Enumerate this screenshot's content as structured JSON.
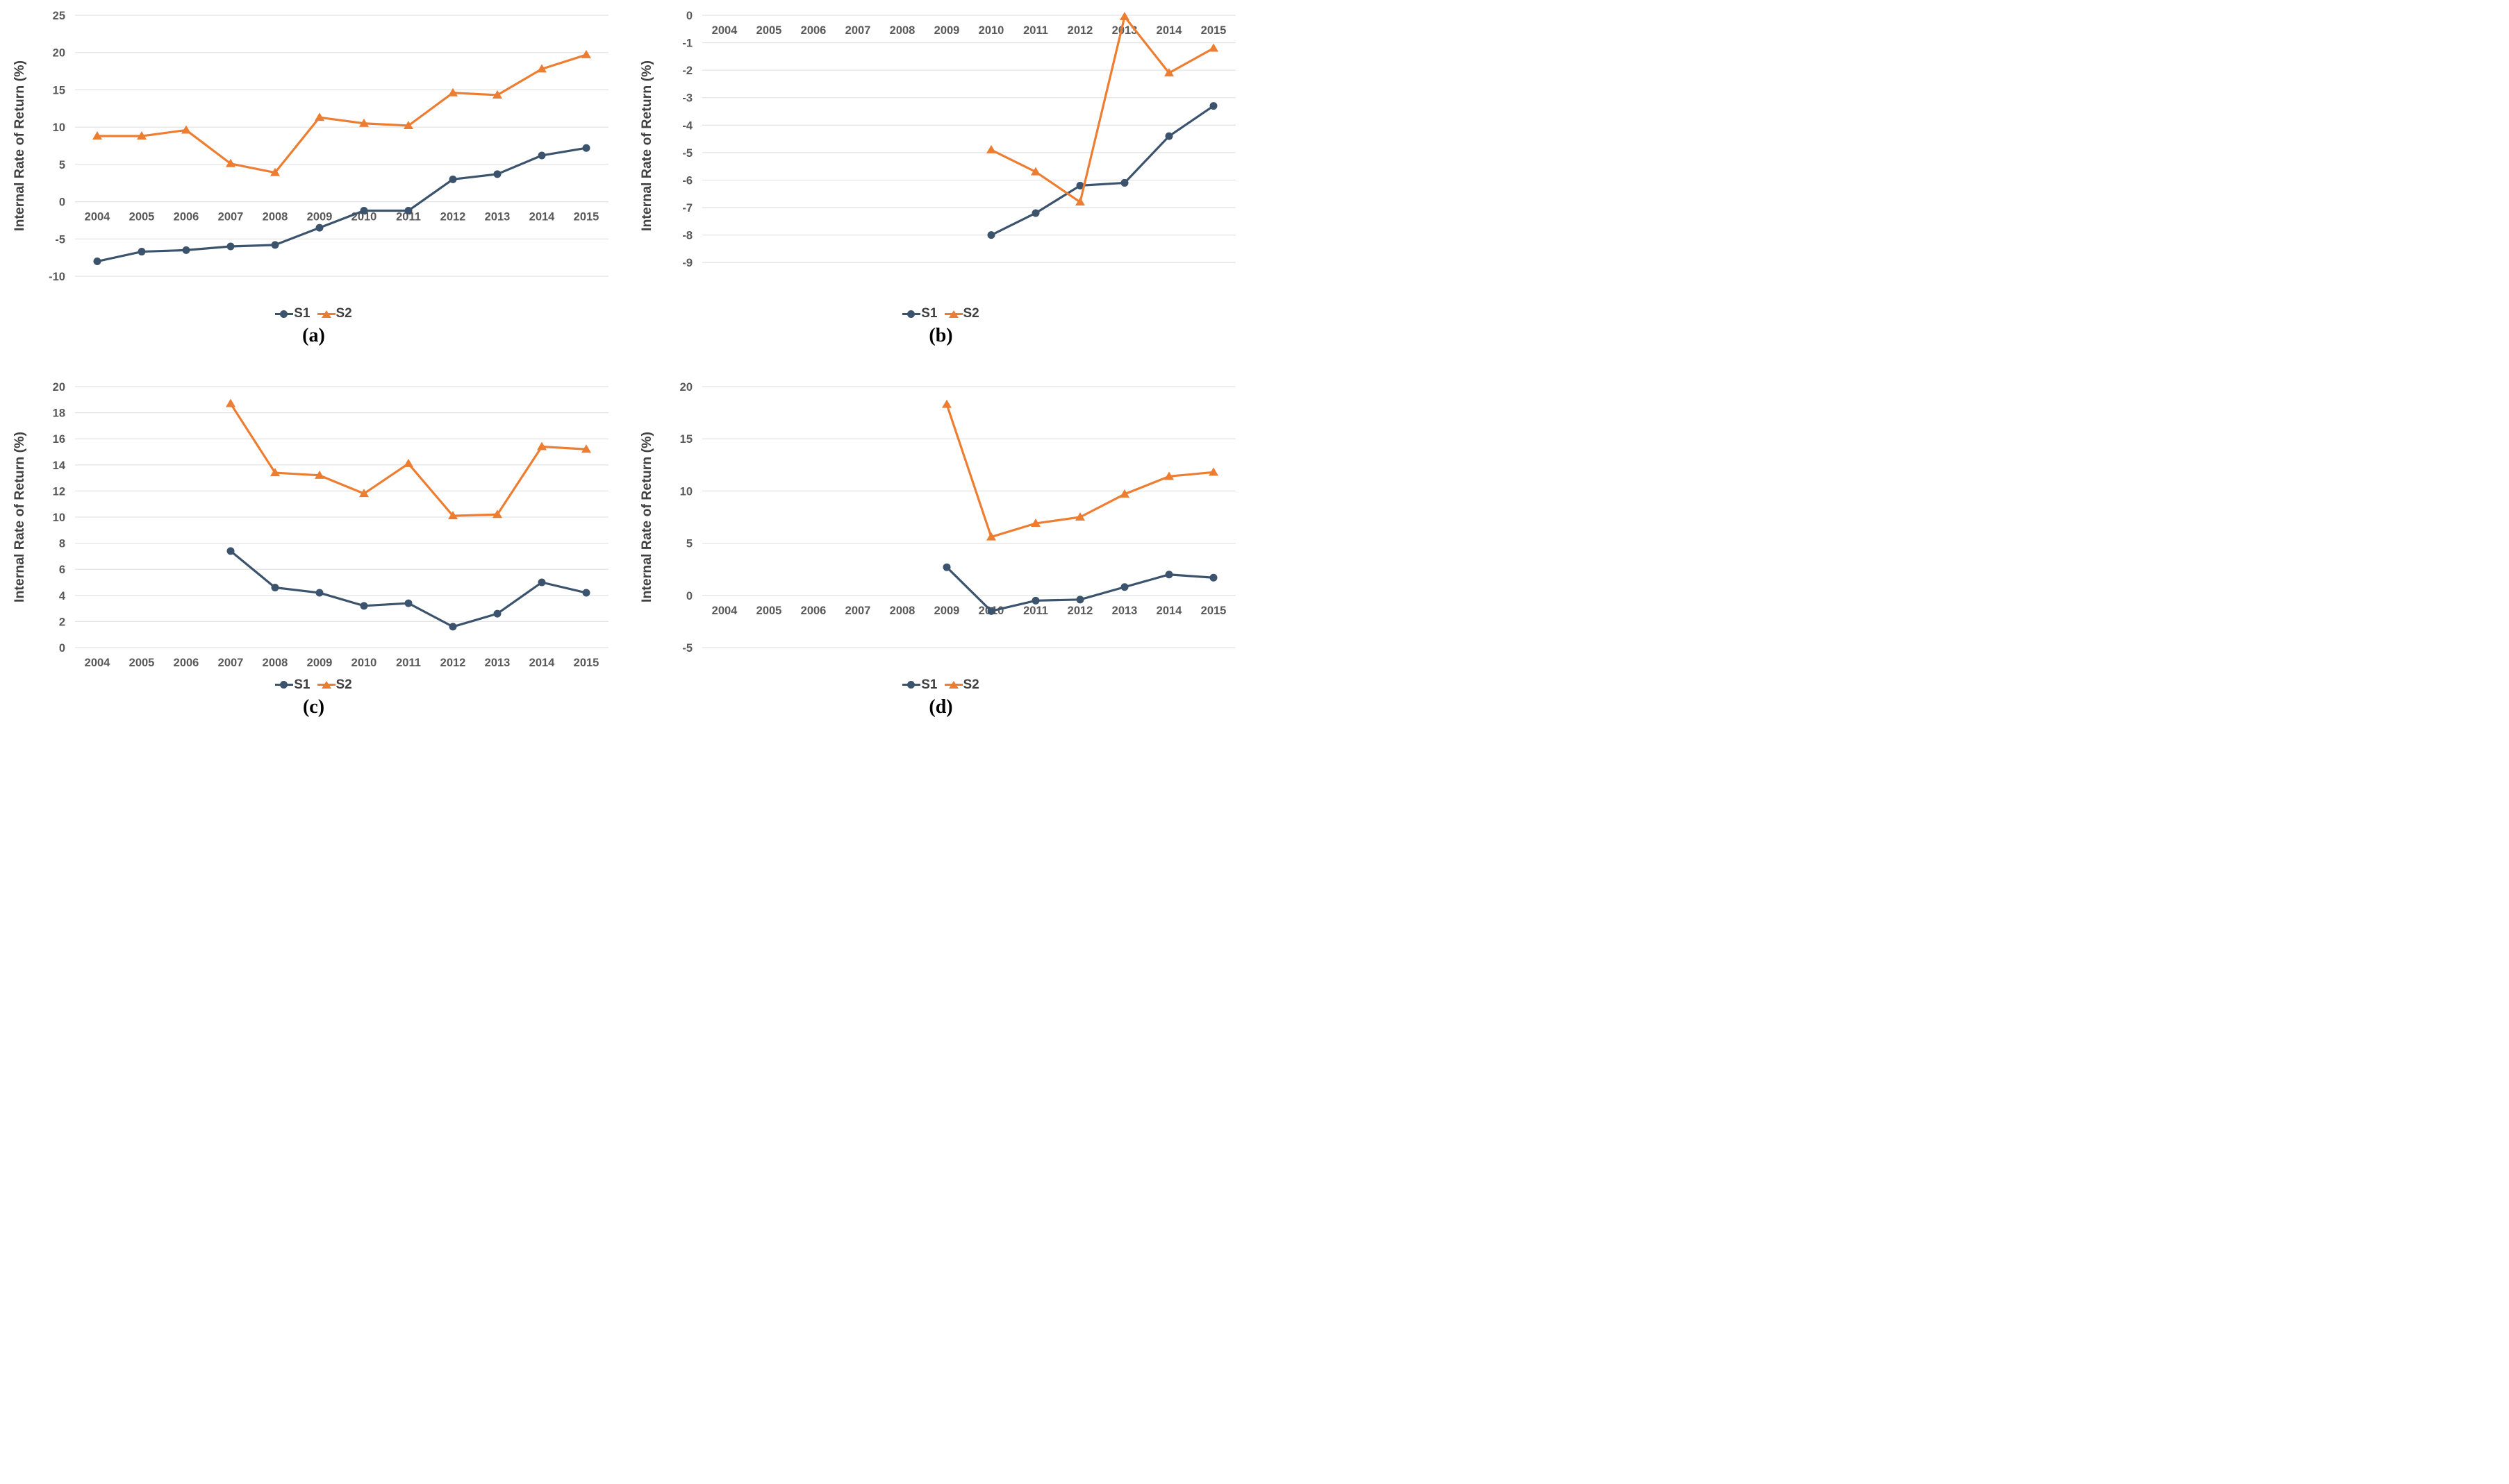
{
  "page": {
    "background": "#ffffff"
  },
  "colors": {
    "s1_line": "#3B536C",
    "s2_line": "#ED7D31",
    "tick_text": "#595959",
    "axis_title_text": "#404040",
    "gridline": "#E4E4E4",
    "legend_text": "#3F3F3F",
    "caption_text": "#000000"
  },
  "legend": {
    "s1_label": "S1",
    "s2_label": "S2"
  },
  "chart_data": [
    {
      "id": "a",
      "type": "line",
      "caption": "(a)",
      "ylabel": "Internal Rate of Return (%)",
      "xlabel": "",
      "ylim": [
        -10,
        25
      ],
      "ytick_step": 5,
      "grid": true,
      "legend_position": "bottom",
      "x_labels_at_zero_line": true,
      "categories": [
        "2004",
        "2005",
        "2006",
        "2007",
        "2008",
        "2009",
        "2010",
        "2011",
        "2012",
        "2013",
        "2014",
        "2015"
      ],
      "series": [
        {
          "name": "S1",
          "marker": "circle",
          "color": "#3B536C",
          "values": [
            -8.0,
            -6.7,
            -6.5,
            -6.0,
            -5.8,
            -3.5,
            -1.2,
            -1.2,
            3.0,
            3.7,
            6.2,
            7.2
          ]
        },
        {
          "name": "S2",
          "marker": "triangle",
          "color": "#ED7D31",
          "values": [
            8.8,
            8.8,
            9.6,
            5.1,
            3.9,
            11.3,
            10.5,
            10.2,
            14.6,
            14.3,
            17.8,
            19.7
          ]
        }
      ]
    },
    {
      "id": "b",
      "type": "line",
      "caption": "(b)",
      "ylabel": "Internal Rate of Return (%)",
      "xlabel": "",
      "ylim": [
        -9.5,
        0
      ],
      "ytick_step": 1,
      "grid": true,
      "legend_position": "bottom",
      "x_labels_at_zero_line": true,
      "categories": [
        "2004",
        "2005",
        "2006",
        "2007",
        "2008",
        "2009",
        "2010",
        "2011",
        "2012",
        "2013",
        "2014",
        "2015"
      ],
      "series": [
        {
          "name": "S1",
          "marker": "circle",
          "color": "#3B536C",
          "values": [
            null,
            null,
            null,
            null,
            null,
            null,
            -8.0,
            -7.2,
            -6.2,
            -6.1,
            -4.4,
            -3.3
          ]
        },
        {
          "name": "S2",
          "marker": "triangle",
          "color": "#ED7D31",
          "values": [
            null,
            null,
            null,
            null,
            null,
            null,
            -4.9,
            -5.7,
            -6.8,
            -0.05,
            -2.1,
            -1.2
          ]
        }
      ]
    },
    {
      "id": "c",
      "type": "line",
      "caption": "(c)",
      "ylabel": "Internal Rate of Return (%)",
      "xlabel": "",
      "ylim": [
        0,
        20
      ],
      "ytick_step": 2,
      "grid": true,
      "legend_position": "bottom",
      "x_labels_at_zero_line": true,
      "categories": [
        "2004",
        "2005",
        "2006",
        "2007",
        "2008",
        "2009",
        "2010",
        "2011",
        "2012",
        "2013",
        "2014",
        "2015"
      ],
      "series": [
        {
          "name": "S1",
          "marker": "circle",
          "color": "#3B536C",
          "values": [
            null,
            null,
            null,
            7.4,
            4.6,
            4.2,
            3.2,
            3.4,
            1.6,
            2.6,
            5.0,
            4.2
          ]
        },
        {
          "name": "S2",
          "marker": "triangle",
          "color": "#ED7D31",
          "values": [
            null,
            null,
            null,
            18.7,
            13.4,
            13.2,
            11.8,
            14.1,
            10.1,
            10.2,
            15.4,
            15.2
          ]
        }
      ]
    },
    {
      "id": "d",
      "type": "line",
      "caption": "(d)",
      "ylabel": "Internal Rate of Return (%)",
      "xlabel": "",
      "ylim": [
        -5,
        20
      ],
      "ytick_step": 5,
      "grid": true,
      "legend_position": "bottom",
      "x_labels_at_zero_line": true,
      "categories": [
        "2004",
        "2005",
        "2006",
        "2007",
        "2008",
        "2009",
        "2010",
        "2011",
        "2012",
        "2013",
        "2014",
        "2015"
      ],
      "series": [
        {
          "name": "S1",
          "marker": "circle",
          "color": "#3B536C",
          "values": [
            null,
            null,
            null,
            null,
            null,
            2.7,
            -1.5,
            -0.5,
            -0.4,
            0.8,
            2.0,
            1.7
          ]
        },
        {
          "name": "S2",
          "marker": "triangle",
          "color": "#ED7D31",
          "values": [
            null,
            null,
            null,
            null,
            null,
            18.3,
            5.6,
            6.9,
            7.5,
            9.7,
            11.4,
            11.8
          ]
        }
      ]
    }
  ]
}
